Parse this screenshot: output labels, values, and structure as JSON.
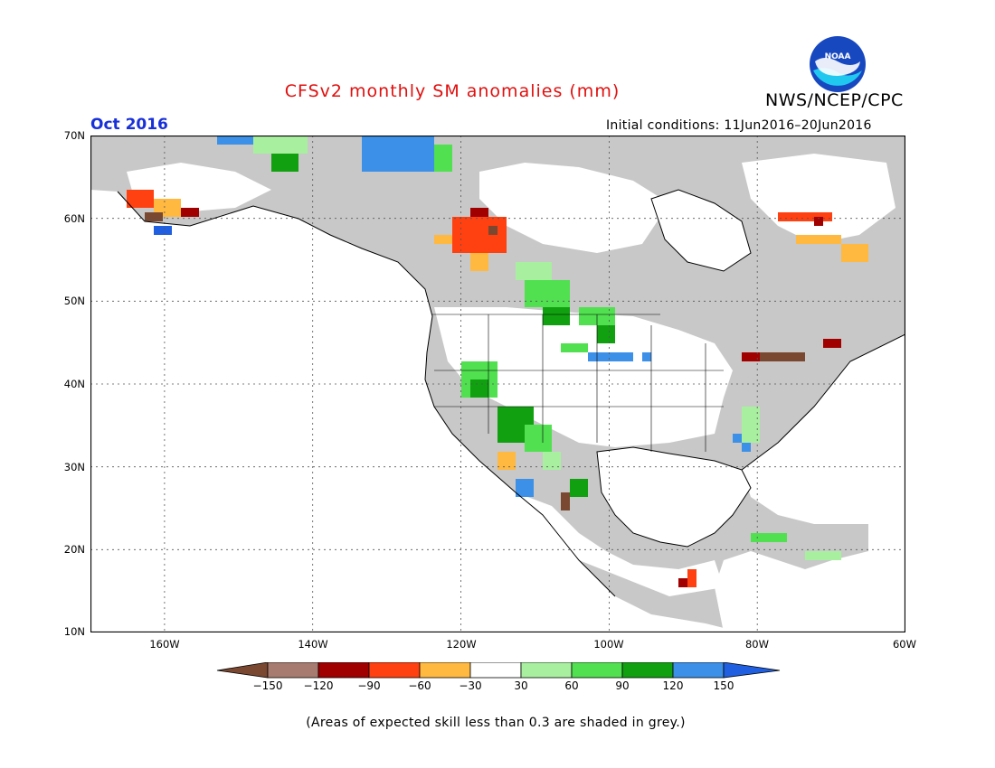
{
  "title": "CFSv2 monthly SM anomalies (mm)",
  "agency": "NWS/NCEP/CPC",
  "logo_text": "NOAA",
  "forecast_month": "Oct 2016",
  "initial_conditions": "Initial conditions: 11Jun2016–20Jun2016",
  "footnote": "(Areas of expected skill less than 0.3 are shaded in grey.)",
  "map": {
    "projection": "lat-lon",
    "lon_range": [
      -170,
      -60
    ],
    "lat_range": [
      10,
      70
    ],
    "lat_labels": [
      "70N",
      "60N",
      "50N",
      "40N",
      "30N",
      "20N",
      "10N"
    ],
    "lon_labels": [
      "160W",
      "140W",
      "120W",
      "100W",
      "80W",
      "60W"
    ],
    "gridlines": "dotted",
    "ocean_color": "#ffffff",
    "low_skill_color": "#c8c8c8"
  },
  "colorbar": {
    "ticks": [
      "−150",
      "−120",
      "−90",
      "−60",
      "−30",
      "30",
      "60",
      "90",
      "120",
      "150"
    ],
    "colors": [
      "#7a4830",
      "#a87b70",
      "#a00000",
      "#ff4010",
      "#ffb840",
      "#ffffff",
      "#a8f0a0",
      "#50e050",
      "#10a010",
      "#3c90e8",
      "#2060e0"
    ]
  },
  "colors": {
    "title": "#e0100f",
    "month": "#1830d8",
    "grey": "#c8c8c8",
    "white": "#ffffff",
    "light_green": "#a8f0a0",
    "green": "#50e050",
    "dark_green": "#10a010",
    "blue": "#3c90e8",
    "orange": "#ffb840",
    "red_orange": "#ff4010",
    "dark_red": "#a00000",
    "brown": "#7a4830"
  }
}
